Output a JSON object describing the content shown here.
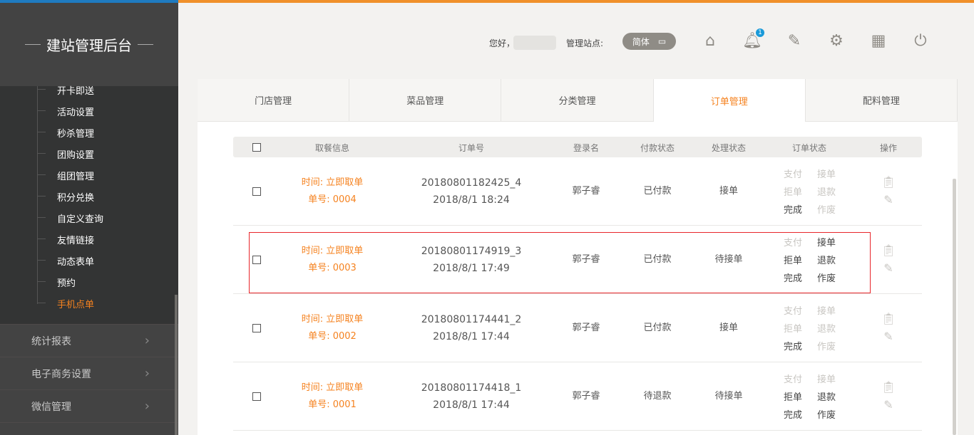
{
  "sidebar": {
    "brand": "建站管理后台",
    "sub_items": [
      {
        "label": "开卡即送"
      },
      {
        "label": "活动设置"
      },
      {
        "label": "秒杀管理"
      },
      {
        "label": "团购设置"
      },
      {
        "label": "组团管理"
      },
      {
        "label": "积分兑换"
      },
      {
        "label": "自定义查询"
      },
      {
        "label": "友情链接"
      },
      {
        "label": "动态表单"
      },
      {
        "label": "预约"
      },
      {
        "label": "手机点单",
        "active": true
      }
    ],
    "menus": [
      {
        "label": "统计报表"
      },
      {
        "label": "电子商务设置"
      },
      {
        "label": "微信管理"
      }
    ]
  },
  "header": {
    "greeting": "您好，",
    "site_label": "管理站点:",
    "lang": "简体",
    "notification_count": "1",
    "icons": [
      "home-icon",
      "bell-icon",
      "edit-icon",
      "gear-icon",
      "grid-icon",
      "power-icon"
    ]
  },
  "tabs": [
    {
      "label": "门店管理"
    },
    {
      "label": "菜品管理"
    },
    {
      "label": "分类管理"
    },
    {
      "label": "订单管理",
      "active": true
    },
    {
      "label": "配料管理"
    }
  ],
  "table": {
    "headers": [
      "取餐信息",
      "订单号",
      "登录名",
      "付款状态",
      "处理状态",
      "订单状态",
      "操作"
    ],
    "rows": [
      {
        "time": "时间: 立即取单",
        "num": "单号: 0004",
        "order_no": "20180801182425_4",
        "date": "2018/8/1 18:24",
        "user": "郭子睿",
        "pay": "已付款",
        "proc": "接单",
        "enabled": [
          false,
          false,
          false,
          false,
          true,
          false
        ]
      },
      {
        "time": "时间: 立即取单",
        "num": "单号: 0003",
        "order_no": "20180801174919_3",
        "date": "2018/8/1 17:49",
        "user": "郭子睿",
        "pay": "已付款",
        "proc": "待接单",
        "enabled": [
          false,
          true,
          true,
          true,
          true,
          true
        ],
        "highlighted": true
      },
      {
        "time": "时间: 立即取单",
        "num": "单号: 0002",
        "order_no": "20180801174441_2",
        "date": "2018/8/1 17:44",
        "user": "郭子睿",
        "pay": "已付款",
        "proc": "接单",
        "enabled": [
          false,
          false,
          false,
          false,
          true,
          false
        ]
      },
      {
        "time": "时间: 立即取单",
        "num": "单号: 0001",
        "order_no": "20180801174418_1",
        "date": "2018/8/1 17:44",
        "user": "郭子睿",
        "pay": "待退款",
        "proc": "待接单",
        "enabled": [
          false,
          false,
          true,
          true,
          true,
          true
        ]
      }
    ],
    "actions": [
      "支付",
      "接单",
      "拒单",
      "退款",
      "完成",
      "作废"
    ]
  },
  "colors": {
    "accent": "#f5821f",
    "highlight": "#e8262b",
    "sidebar": "#333434"
  }
}
